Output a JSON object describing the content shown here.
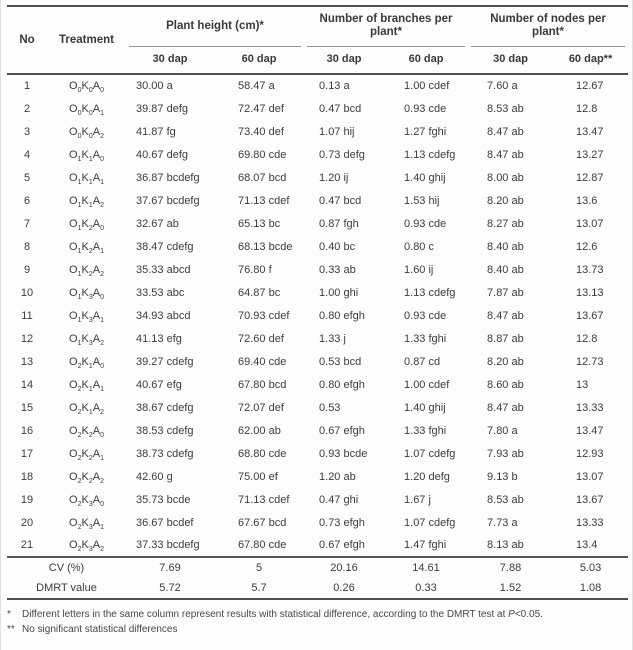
{
  "colors": {
    "heavy_rule": "#4f4f4f",
    "thin_rule": "#979797",
    "text": "#3d3d3d",
    "page_background": "#fdfdfd"
  },
  "table": {
    "col_headers": {
      "no": "No",
      "treatment": "Treatment",
      "groups": [
        {
          "label": "Plant height (cm)*",
          "sub": [
            "30 dap",
            "60 dap"
          ]
        },
        {
          "label": "Number of branches per plant*",
          "sub": [
            "30 dap",
            "60 dap"
          ]
        },
        {
          "label": "Number of nodes per plant*",
          "sub": [
            "30 dap",
            "60 dap**"
          ]
        }
      ]
    },
    "rows": [
      {
        "no": "1",
        "treatment": "O0K0A0",
        "values": [
          "30.00 a",
          "58.47 a",
          "0.13 a",
          "1.00 cdef",
          "7.60 a",
          "12.67"
        ]
      },
      {
        "no": "2",
        "treatment": "O0K0A1",
        "values": [
          "39.87 defg",
          "72.47 def",
          "0.47 bcd",
          "0.93 cde",
          "8.53 ab",
          "12.8"
        ]
      },
      {
        "no": "3",
        "treatment": "O0K0A2",
        "values": [
          "41.87 fg",
          "73.40 def",
          "1.07 hij",
          "1.27 fghi",
          "8.47 ab",
          "13.47"
        ]
      },
      {
        "no": "4",
        "treatment": "O1K1A0",
        "values": [
          "40.67 defg",
          "69.80 cde",
          "0.73 defg",
          "1.13 cdefg",
          "8.47 ab",
          "13.27"
        ]
      },
      {
        "no": "5",
        "treatment": "O1K1A1",
        "values": [
          "36.87 bcdefg",
          "68.07 bcd",
          "1.20 ij",
          "1.40 ghij",
          "8.00 ab",
          "12.87"
        ]
      },
      {
        "no": "6",
        "treatment": "O1K1A2",
        "values": [
          "37.67 bcdefg",
          "71.13 cdef",
          "0.47 bcd",
          "1.53 hij",
          "8.20 ab",
          "13.6"
        ]
      },
      {
        "no": "7",
        "treatment": "O1K2A0",
        "values": [
          "32.67 ab",
          "65.13 bc",
          "0.87 fgh",
          "0.93 cde",
          "8.27 ab",
          "13.07"
        ]
      },
      {
        "no": "8",
        "treatment": "O1K2A1",
        "values": [
          "38.47 cdefg",
          "68.13 bcde",
          "0.40 bc",
          "0.80 c",
          "8.40 ab",
          "12.6"
        ]
      },
      {
        "no": "9",
        "treatment": "O1K2A2",
        "values": [
          "35.33 abcd",
          "76.80 f",
          "0.33 ab",
          "1.60 ij",
          "8.40 ab",
          "13.73"
        ]
      },
      {
        "no": "10",
        "treatment": "O1K3A0",
        "values": [
          "33.53 abc",
          "64.87 bc",
          "1.00 ghi",
          "1.13 cdefg",
          "7.87 ab",
          "13.13"
        ]
      },
      {
        "no": "11",
        "treatment": "O1K3A1",
        "values": [
          "34.93 abcd",
          "70.93 cdef",
          "0.80 efgh",
          "0.93 cde",
          "8.47 ab",
          "13.67"
        ]
      },
      {
        "no": "12",
        "treatment": "O1K3A2",
        "values": [
          "41.13 efg",
          "72.60 def",
          "1.33 j",
          "1.33 fghi",
          "8.87 ab",
          "12.8"
        ]
      },
      {
        "no": "13",
        "treatment": "O2K1A0",
        "values": [
          "39.27 cdefg",
          "69.40 cde",
          "0.53 bcd",
          "0.87 cd",
          "8.20 ab",
          "12.73"
        ]
      },
      {
        "no": "14",
        "treatment": "O2K1A1",
        "values": [
          "40.67 efg",
          "67.80 bcd",
          "0.80 efgh",
          "1.00 cdef",
          "8.60 ab",
          "13"
        ]
      },
      {
        "no": "15",
        "treatment": "O2K1A2",
        "values": [
          "38.67 cdefg",
          "72.07 def",
          "0.53",
          "1.40 ghij",
          "8.47 ab",
          "13.33"
        ]
      },
      {
        "no": "16",
        "treatment": "O2K2A0",
        "values": [
          "38.53 cdefg",
          "62.00 ab",
          "0.67 efgh",
          "1.33 fghi",
          "7.80 a",
          "13.47"
        ]
      },
      {
        "no": "17",
        "treatment": "O2K2A1",
        "values": [
          "38.73 cdefg",
          "68.80 cde",
          "0.93 bcde",
          "1.07 cdefg",
          "7.93 ab",
          "12.93"
        ]
      },
      {
        "no": "18",
        "treatment": "O2K2A2",
        "values": [
          "42.60 g",
          "75.00 ef",
          "1.20 ab",
          "1.20 defg",
          "9.13 b",
          "13.07"
        ]
      },
      {
        "no": "19",
        "treatment": "O2K3A0",
        "values": [
          "35.73 bcde",
          "71.13 cdef",
          "0.47 ghi",
          "1.67 j",
          "8.53 ab",
          "13.67"
        ]
      },
      {
        "no": "20",
        "treatment": "O2K3A1",
        "values": [
          "36.67 bcdef",
          "67.67 bcd",
          "0.73 efgh",
          "1.07 cdefg",
          "7.73 a",
          "13.33"
        ]
      },
      {
        "no": "21",
        "treatment": "O2K3A2",
        "values": [
          "37.33 bcdefg",
          "67.80 cde",
          "0.67 efgh",
          "1.47 fghi",
          "8.13 ab",
          "13.4"
        ]
      }
    ],
    "summary_rows": [
      {
        "label": "CV (%)",
        "values": [
          "7.69",
          "5",
          "20.16",
          "14.61",
          "7.88",
          "5.03"
        ]
      },
      {
        "label": "DMRT value",
        "values": [
          "5.72",
          "5.7",
          "0.26",
          "0.33",
          "1.52",
          "1.08"
        ]
      }
    ]
  },
  "footnotes": [
    {
      "marker": "*",
      "text_before": "Different letters in the same column represent results with statistical difference, according to the DMRT test at ",
      "italic_term": "P",
      "text_after": "<0.05."
    },
    {
      "marker": "**",
      "text_before": "No significant statistical differences",
      "italic_term": "",
      "text_after": ""
    }
  ]
}
